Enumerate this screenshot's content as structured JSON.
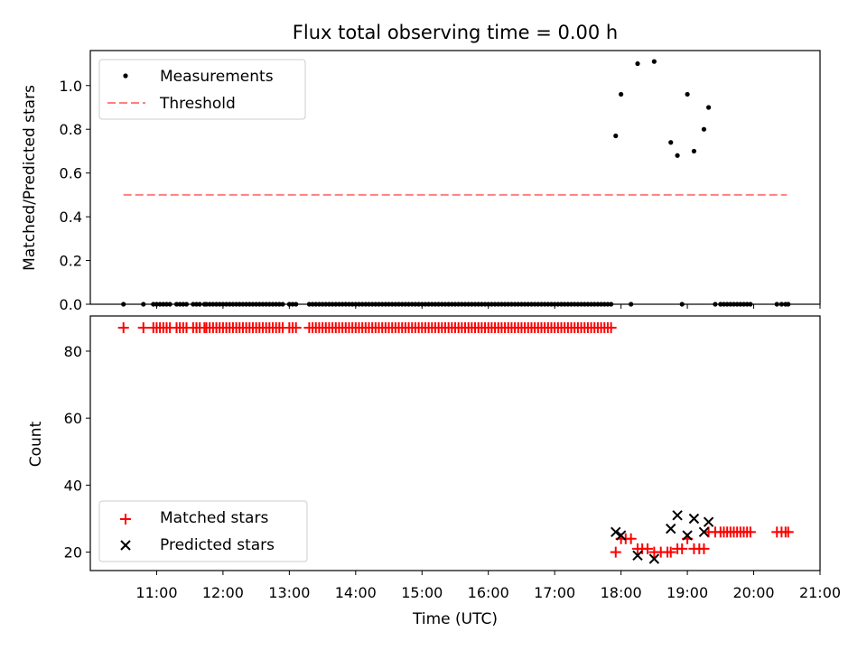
{
  "chart_data": [
    {
      "type": "scatter",
      "title": "Flux total observing time = 0.00 h",
      "xlabel": "",
      "ylabel": "Matched/Predicted stars",
      "xlim": [
        10.0,
        21.0
      ],
      "ylim": [
        0,
        1.16
      ],
      "yticks": [
        "0.0",
        "0.2",
        "0.4",
        "0.6",
        "0.8",
        "1.0"
      ],
      "ytick_values": [
        0,
        0.2,
        0.4,
        0.6,
        0.8,
        1.0
      ],
      "grid": false,
      "legend_position": "top-left",
      "series": [
        {
          "name": "Measurements",
          "kind": "points",
          "color": "#000000",
          "x": [
            10.5,
            10.8,
            10.95,
            11.0,
            11.05,
            11.1,
            11.15,
            11.2,
            11.3,
            11.35,
            11.4,
            11.45,
            11.55,
            11.6,
            11.65,
            11.72,
            11.75,
            11.8,
            11.85,
            11.9,
            11.95,
            12.0,
            12.05,
            12.1,
            12.15,
            12.2,
            12.25,
            12.3,
            12.35,
            12.4,
            12.45,
            12.5,
            12.55,
            12.6,
            12.65,
            12.7,
            12.75,
            12.8,
            12.85,
            12.9,
            13.0,
            13.05,
            13.1,
            13.3,
            13.35,
            13.4,
            13.45,
            13.5,
            13.55,
            13.6,
            13.65,
            13.7,
            13.75,
            13.8,
            13.85,
            13.9,
            13.95,
            14.0,
            14.05,
            14.1,
            14.15,
            14.2,
            14.25,
            14.3,
            14.35,
            14.4,
            14.45,
            14.5,
            14.55,
            14.6,
            14.65,
            14.7,
            14.75,
            14.8,
            14.85,
            14.9,
            14.95,
            15.0,
            15.05,
            15.1,
            15.15,
            15.2,
            15.25,
            15.3,
            15.35,
            15.4,
            15.45,
            15.5,
            15.55,
            15.6,
            15.65,
            15.7,
            15.75,
            15.8,
            15.85,
            15.9,
            15.95,
            16.0,
            16.05,
            16.1,
            16.15,
            16.2,
            16.25,
            16.3,
            16.35,
            16.4,
            16.45,
            16.5,
            16.55,
            16.6,
            16.65,
            16.7,
            16.75,
            16.8,
            16.85,
            16.9,
            16.95,
            17.0,
            17.05,
            17.1,
            17.15,
            17.2,
            17.25,
            17.3,
            17.35,
            17.4,
            17.45,
            17.5,
            17.55,
            17.6,
            17.65,
            17.7,
            17.75,
            17.8,
            17.85,
            17.92,
            18.0,
            18.15,
            18.25,
            18.5,
            18.75,
            18.85,
            18.92,
            19.0,
            19.1,
            19.25,
            19.32,
            19.42,
            19.5,
            19.55,
            19.6,
            19.65,
            19.7,
            19.75,
            19.8,
            19.85,
            19.9,
            19.95,
            20.35,
            20.42,
            20.48,
            20.52
          ],
          "y": [
            0,
            0,
            0,
            0,
            0,
            0,
            0,
            0,
            0,
            0,
            0,
            0,
            0,
            0,
            0,
            0,
            0,
            0,
            0,
            0,
            0,
            0,
            0,
            0,
            0,
            0,
            0,
            0,
            0,
            0,
            0,
            0,
            0,
            0,
            0,
            0,
            0,
            0,
            0,
            0,
            0,
            0,
            0,
            0,
            0,
            0,
            0,
            0,
            0,
            0,
            0,
            0,
            0,
            0,
            0,
            0,
            0,
            0,
            0,
            0,
            0,
            0,
            0,
            0,
            0,
            0,
            0,
            0,
            0,
            0,
            0,
            0,
            0,
            0,
            0,
            0,
            0,
            0,
            0,
            0,
            0,
            0,
            0,
            0,
            0,
            0,
            0,
            0,
            0,
            0,
            0,
            0,
            0,
            0,
            0,
            0,
            0,
            0,
            0,
            0,
            0,
            0,
            0,
            0,
            0,
            0,
            0,
            0,
            0,
            0,
            0,
            0,
            0,
            0,
            0,
            0,
            0,
            0,
            0,
            0,
            0,
            0,
            0,
            0,
            0,
            0,
            0,
            0,
            0,
            0,
            0,
            0,
            0,
            0,
            0,
            0.77,
            0.96,
            0,
            1.1,
            1.11,
            0.74,
            0.68,
            0,
            0.96,
            0.7,
            0.8,
            0.9,
            0,
            0,
            0,
            0,
            0,
            0,
            0,
            0,
            0,
            0,
            0,
            0,
            0,
            0,
            0
          ]
        },
        {
          "name": "Threshold",
          "kind": "dashed-line",
          "color": "#ff7f7f",
          "x": [
            10.5,
            20.5
          ],
          "y": [
            0.5,
            0.5
          ]
        }
      ]
    },
    {
      "type": "scatter",
      "title": "",
      "xlabel": "Time (UTC)",
      "ylabel": "Count",
      "xlim": [
        10.0,
        21.0
      ],
      "ylim": [
        14.5,
        90.5
      ],
      "xticks": [
        "11:00",
        "12:00",
        "13:00",
        "14:00",
        "15:00",
        "16:00",
        "17:00",
        "18:00",
        "19:00",
        "20:00",
        "21:00"
      ],
      "xtick_values": [
        11,
        12,
        13,
        14,
        15,
        16,
        17,
        18,
        19,
        20,
        21
      ],
      "yticks": [
        "20",
        "40",
        "60",
        "80"
      ],
      "ytick_values": [
        20,
        40,
        60,
        80
      ],
      "grid": false,
      "legend_position": "bottom-left",
      "series": [
        {
          "name": "Matched stars",
          "kind": "plus",
          "color": "#ff0000",
          "x": [
            10.5,
            10.8,
            10.95,
            11.0,
            11.05,
            11.1,
            11.15,
            11.2,
            11.3,
            11.35,
            11.4,
            11.45,
            11.55,
            11.6,
            11.65,
            11.72,
            11.75,
            11.8,
            11.85,
            11.9,
            11.95,
            12.0,
            12.05,
            12.1,
            12.15,
            12.2,
            12.25,
            12.3,
            12.35,
            12.4,
            12.45,
            12.5,
            12.55,
            12.6,
            12.65,
            12.7,
            12.75,
            12.8,
            12.85,
            12.9,
            13.0,
            13.05,
            13.1,
            13.3,
            13.35,
            13.4,
            13.45,
            13.5,
            13.55,
            13.6,
            13.65,
            13.7,
            13.75,
            13.8,
            13.85,
            13.9,
            13.95,
            14.0,
            14.05,
            14.1,
            14.15,
            14.2,
            14.25,
            14.3,
            14.35,
            14.4,
            14.45,
            14.5,
            14.55,
            14.6,
            14.65,
            14.7,
            14.75,
            14.8,
            14.85,
            14.9,
            14.95,
            15.0,
            15.05,
            15.1,
            15.15,
            15.2,
            15.25,
            15.3,
            15.35,
            15.4,
            15.45,
            15.5,
            15.55,
            15.6,
            15.65,
            15.7,
            15.75,
            15.8,
            15.85,
            15.9,
            15.95,
            16.0,
            16.05,
            16.1,
            16.15,
            16.2,
            16.25,
            16.3,
            16.35,
            16.4,
            16.45,
            16.5,
            16.55,
            16.6,
            16.65,
            16.7,
            16.75,
            16.8,
            16.85,
            16.9,
            16.95,
            17.0,
            17.05,
            17.1,
            17.15,
            17.2,
            17.25,
            17.3,
            17.35,
            17.4,
            17.45,
            17.5,
            17.55,
            17.6,
            17.65,
            17.7,
            17.75,
            17.8,
            17.85,
            17.92,
            18.0,
            18.07,
            18.15,
            18.25,
            18.32,
            18.4,
            18.5,
            18.6,
            18.7,
            18.75,
            18.85,
            18.92,
            19.0,
            19.1,
            19.18,
            19.25,
            19.32,
            19.42,
            19.5,
            19.55,
            19.6,
            19.65,
            19.7,
            19.75,
            19.8,
            19.85,
            19.9,
            19.95,
            20.35,
            20.42,
            20.48,
            20.52
          ],
          "y": [
            87,
            87,
            87,
            87,
            87,
            87,
            87,
            87,
            87,
            87,
            87,
            87,
            87,
            87,
            87,
            87,
            87,
            87,
            87,
            87,
            87,
            87,
            87,
            87,
            87,
            87,
            87,
            87,
            87,
            87,
            87,
            87,
            87,
            87,
            87,
            87,
            87,
            87,
            87,
            87,
            87,
            87,
            87,
            87,
            87,
            87,
            87,
            87,
            87,
            87,
            87,
            87,
            87,
            87,
            87,
            87,
            87,
            87,
            87,
            87,
            87,
            87,
            87,
            87,
            87,
            87,
            87,
            87,
            87,
            87,
            87,
            87,
            87,
            87,
            87,
            87,
            87,
            87,
            87,
            87,
            87,
            87,
            87,
            87,
            87,
            87,
            87,
            87,
            87,
            87,
            87,
            87,
            87,
            87,
            87,
            87,
            87,
            87,
            87,
            87,
            87,
            87,
            87,
            87,
            87,
            87,
            87,
            87,
            87,
            87,
            87,
            87,
            87,
            87,
            87,
            87,
            87,
            87,
            87,
            87,
            87,
            87,
            87,
            87,
            87,
            87,
            87,
            87,
            87,
            87,
            87,
            87,
            87,
            87,
            87,
            20,
            24,
            24,
            24,
            21,
            21,
            21,
            20,
            20,
            20,
            20,
            21,
            21,
            24,
            21,
            21,
            21,
            26,
            26,
            26,
            26,
            26,
            26,
            26,
            26,
            26,
            26,
            26,
            26,
            26,
            26,
            26,
            26
          ]
        },
        {
          "name": "Predicted stars",
          "kind": "cross",
          "color": "#000000",
          "x": [
            17.92,
            18.0,
            18.25,
            18.5,
            18.75,
            18.85,
            19.0,
            19.1,
            19.25,
            19.32
          ],
          "y": [
            26,
            25,
            19,
            18,
            27,
            31,
            25,
            30,
            26,
            29
          ]
        }
      ]
    }
  ]
}
